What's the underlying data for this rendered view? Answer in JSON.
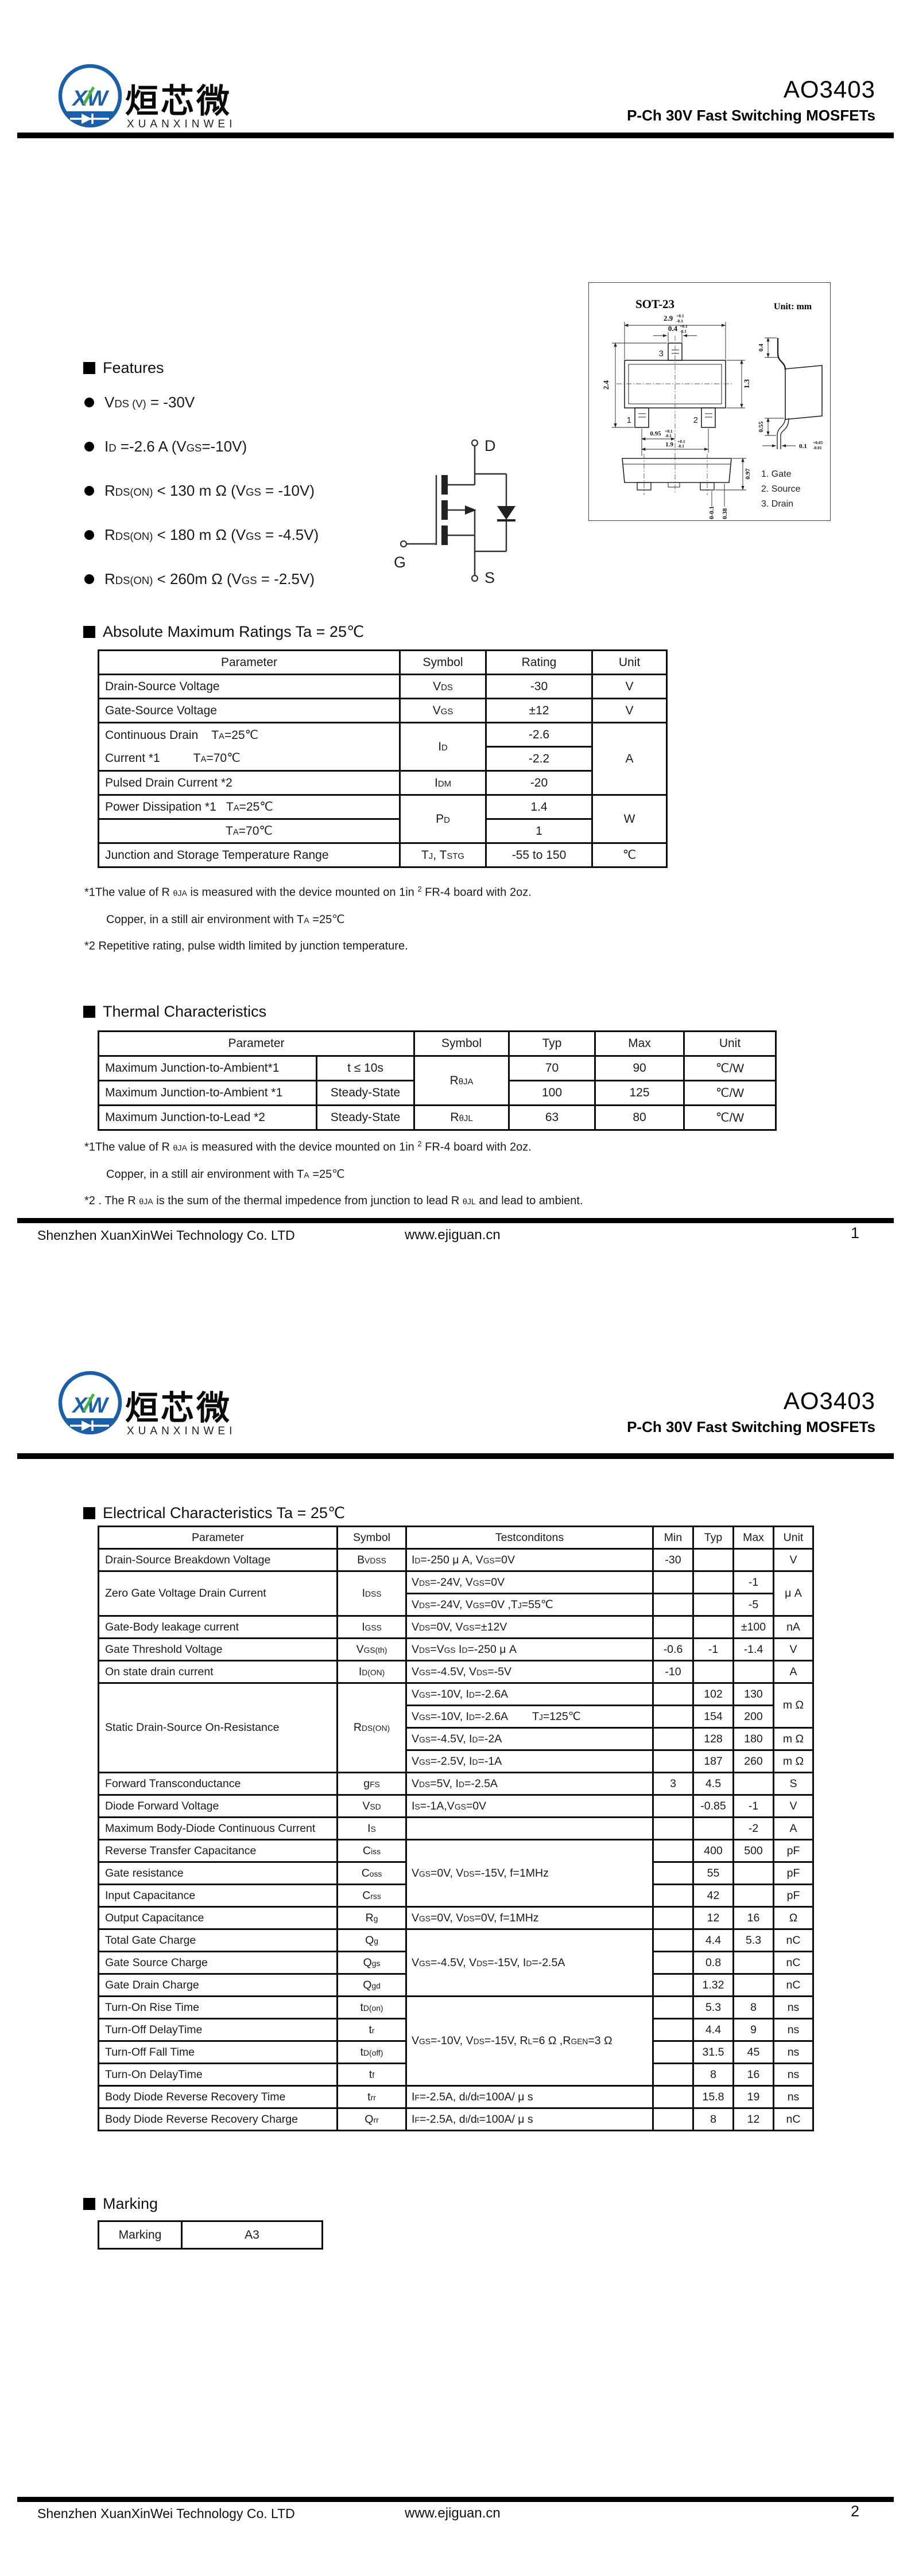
{
  "header": {
    "logo": {
      "monogram": "XW",
      "chinese": "烜芯微",
      "latin": "XUANXINWEI"
    },
    "part_number": "AO3403",
    "subtitle": "P-Ch 30V Fast Switching MOSFETs"
  },
  "features": {
    "title": "Features",
    "items": [
      "V_{DS (V)} = -30V",
      "I_{D} =-2.6 A (V_{GS}=-10V)",
      "R_{DS(ON)} < 130 m Ω (V_{GS} = -10V)",
      "R_{DS(ON)} < 180 m Ω (V_{GS} = -4.5V)",
      "R_{DS(ON)} < 260m Ω (V_{GS} = -2.5V)"
    ]
  },
  "package": {
    "name": "SOT-23",
    "unit_note": "Unit: mm",
    "pins": [
      "1. Gate",
      "2. Source",
      "3. Drain"
    ],
    "pin_numbers": [
      "1",
      "2",
      "3"
    ],
    "dims": {
      "body_width": "2.9",
      "lead_width": "0.4",
      "outline_height": "2.4",
      "body_height": "1.3",
      "pitch": "0.95",
      "span": "1.9",
      "side_lead_top": "0.4",
      "side_lead_bottom": "0.55",
      "lead_thickness": "0.1",
      "profile_height": "0.97",
      "standoff": "0-0.1",
      "foot_height": "0.38"
    },
    "tol_std": {
      "plus": "+0.1",
      "minus": "-0.1"
    },
    "tol_thk": {
      "plus": "+0.05",
      "minus": "-0.01"
    }
  },
  "mosfet": {
    "drain": "D",
    "gate": "G",
    "source": "S"
  },
  "abs_max": {
    "title": "Absolute Maximum Ratings Ta = 25℃",
    "headers": [
      "Parameter",
      "Symbol",
      "Rating",
      "Unit"
    ],
    "rows": [
      {
        "param": "Drain-Source Voltage",
        "symbol": "V_{DS}",
        "rating": "-30",
        "unit": "V"
      },
      {
        "param": "Gate-Source Voltage",
        "symbol": "V_{GS}",
        "rating": "±12",
        "unit": "V"
      },
      {
        "param": "Continuous Drain    T_{A}=25℃",
        "symbol": "I_{D}",
        "rating": "-2.6",
        "unit": "A"
      },
      {
        "param": "Current *1          T_{A}=70℃",
        "rating": "-2.2"
      },
      {
        "param": "Pulsed Drain Current *2",
        "symbol": "I_{DM}",
        "rating": "-20"
      },
      {
        "param": "Power Dissipation *1   T_{A}=25℃",
        "symbol": "P_{D}",
        "rating": "1.4",
        "unit": "W"
      },
      {
        "param": "T_{A}=70℃",
        "rating": "1"
      },
      {
        "param": "Junction and Storage Temperature Range",
        "symbol": "T_{J}, T_{STG}",
        "rating": "-55 to 150",
        "unit": "℃"
      }
    ],
    "notes": [
      "*1The value of R _{θJA} is measured with the device mounted on 1in ^{2} FR-4 board with 2oz.",
      "Copper, in a still air environment with T_{A} =25℃",
      "*2 Repetitive rating, pulse width limited by junction temperature."
    ]
  },
  "thermal": {
    "title": "Thermal Characteristics",
    "headers": [
      "Parameter",
      "Symbol",
      "Typ",
      "Max",
      "Unit"
    ],
    "rows": [
      {
        "param": "Maximum Junction-to-Ambient*1",
        "cond": "t ≤ 10s",
        "symbol": "R_{θJA}",
        "typ": "70",
        "max": "90",
        "unit": "℃/W"
      },
      {
        "param": "Maximum Junction-to-Ambient *1",
        "cond": "Steady-State",
        "typ": "100",
        "max": "125",
        "unit": "℃/W"
      },
      {
        "param": "Maximum Junction-to-Lead *2",
        "cond": "Steady-State",
        "symbol": "R_{θJL}",
        "typ": "63",
        "max": "80",
        "unit": "℃/W"
      }
    ],
    "notes": [
      "*1The value of R _{θJA} is measured with the device mounted on 1in ^{2} FR-4 board with 2oz.",
      "Copper, in a still air environment with T_{A} =25℃",
      "*2 . The R _{θJA} is the sum of the thermal impedence from junction to lead R _{θJL} and lead to ambient."
    ]
  },
  "electrical": {
    "title": "Electrical Characteristics Ta = 25℃",
    "headers": [
      "Parameter",
      "Symbol",
      "Testconditons",
      "Min",
      "Typ",
      "Max",
      "Unit"
    ],
    "rows": [
      {
        "param": "Drain-Source Breakdown Voltage",
        "symbol": "B_{VDSS}",
        "cond": "I_{D}=-250 μ A, V_{GS}=0V",
        "min": "-30",
        "typ": "",
        "max": "",
        "unit": "V"
      },
      {
        "param": "Zero Gate Voltage Drain Current",
        "symbol": "I_{DSS}",
        "cond": "V_{DS}=-24V, V_{GS}=0V",
        "min": "",
        "typ": "",
        "max": "-1",
        "unit": "μ A"
      },
      {
        "cond": "V_{DS}=-24V, V_{GS}=0V ,T_{J}=55℃",
        "min": "",
        "typ": "",
        "max": "-5"
      },
      {
        "param": "Gate-Body leakage current",
        "symbol": "I_{GSS}",
        "cond": "V_{DS}=0V, V_{GS}=±12V",
        "min": "",
        "typ": "",
        "max": "±100",
        "unit": "nA"
      },
      {
        "param": "Gate Threshold Voltage",
        "symbol": "V_{GS(th)}",
        "cond": "V_{DS}=V_{GS} I_{D}=-250 μ A",
        "min": "-0.6",
        "typ": "-1",
        "max": "-1.4",
        "unit": "V"
      },
      {
        "param": "On state drain current",
        "symbol": "I_{D(ON)}",
        "cond": "V_{GS}=-4.5V, V_{DS}=-5V",
        "min": "-10",
        "typ": "",
        "max": "",
        "unit": "A"
      },
      {
        "param": "Static Drain-Source On-Resistance",
        "symbol": "R_{DS(ON)}",
        "cond": "V_{GS}=-10V, I_{D}=-2.6A",
        "min": "",
        "typ": "102",
        "max": "130",
        "unit": "m Ω"
      },
      {
        "cond": "V_{GS}=-10V, I_{D}=-2.6A        T_{J}=125℃",
        "min": "",
        "typ": "154",
        "max": "200"
      },
      {
        "cond": "V_{GS}=-4.5V, I_{D}=-2A",
        "min": "",
        "typ": "128",
        "max": "180",
        "unit": "m Ω"
      },
      {
        "cond": "V_{GS}=-2.5V, I_{D}=-1A",
        "min": "",
        "typ": "187",
        "max": "260",
        "unit": "m Ω"
      },
      {
        "param": "Forward Transconductance",
        "symbol": "g_{FS}",
        "cond": "V_{DS}=5V, I_{D}=-2.5A",
        "min": "3",
        "typ": "4.5",
        "max": "",
        "unit": "S"
      },
      {
        "param": "Diode Forward Voltage",
        "symbol": "V_{SD}",
        "cond": "I_{S}=-1A,V_{GS}=0V",
        "min": "",
        "typ": "-0.85",
        "max": "-1",
        "unit": "V"
      },
      {
        "param": "Maximum Body-Diode Continuous Current",
        "symbol": "I_{S}",
        "cond": "",
        "min": "",
        "typ": "",
        "max": "-2",
        "unit": "A"
      },
      {
        "param": "Reverse Transfer Capacitance",
        "symbol": "C_{iss}",
        "cond": "V_{GS}=0V, V_{DS}=-15V, f=1MHz",
        "min": "",
        "typ": "400",
        "max": "500",
        "unit": "pF"
      },
      {
        "param": "Gate resistance",
        "symbol": "C_{oss}",
        "min": "",
        "typ": "55",
        "max": "",
        "unit": "pF"
      },
      {
        "param": "Input Capacitance",
        "symbol": "C_{rss}",
        "min": "",
        "typ": "42",
        "max": "",
        "unit": "pF"
      },
      {
        "param": "Output Capacitance",
        "symbol": "R_{g}",
        "cond": "V_{GS}=0V, V_{DS}=0V, f=1MHz",
        "min": "",
        "typ": "12",
        "max": "16",
        "unit": "Ω"
      },
      {
        "param": "Total Gate Charge",
        "symbol": "Q_{g}",
        "cond": "V_{GS}=-4.5V, V_{DS}=-15V, I_{D}=-2.5A",
        "min": "",
        "typ": "4.4",
        "max": "5.3",
        "unit": "nC"
      },
      {
        "param": "Gate Source Charge",
        "symbol": "Q_{gs}",
        "min": "",
        "typ": "0.8",
        "max": "",
        "unit": "nC"
      },
      {
        "param": "Gate Drain Charge",
        "symbol": "Q_{gd}",
        "min": "",
        "typ": "1.32",
        "max": "",
        "unit": "nC"
      },
      {
        "param": "Turn-On Rise Time",
        "symbol": "t_{D(on)}",
        "cond": "V_{GS}=-10V, V_{DS}=-15V, R_{L}=6 Ω ,R_{GEN}=3 Ω",
        "min": "",
        "typ": "5.3",
        "max": "8",
        "unit": "ns"
      },
      {
        "param": "Turn-Off DelayTime",
        "symbol": "t_{r}",
        "min": "",
        "typ": "4.4",
        "max": "9",
        "unit": "ns"
      },
      {
        "param": "Turn-Off Fall Time",
        "symbol": "t_{D(off)}",
        "min": "",
        "typ": "31.5",
        "max": "45",
        "unit": "ns"
      },
      {
        "param": "Turn-On DelayTime",
        "symbol": "t_{f}",
        "min": "",
        "typ": "8",
        "max": "16",
        "unit": "ns"
      },
      {
        "param": "Body Diode Reverse Recovery Time",
        "symbol": "t_{rr}",
        "cond": "I_{F}=-2.5A, d_{I}/d_{t}=100A/ μ s",
        "min": "",
        "typ": "15.8",
        "max": "19",
        "unit": "ns"
      },
      {
        "param": "Body Diode Reverse Recovery Charge",
        "symbol": "Q_{rr}",
        "cond": "I_{F}=-2.5A, d_{I}/d_{t}=100A/ μ s",
        "min": "",
        "typ": "8",
        "max": "12",
        "unit": "nC"
      }
    ]
  },
  "marking": {
    "title": "Marking",
    "label": "Marking",
    "value": "A3"
  },
  "footer": {
    "company": "Shenzhen XuanXinWei Technology Co. LTD",
    "website": "www.ejiguan.cn",
    "page1": "1",
    "page2": "2"
  }
}
